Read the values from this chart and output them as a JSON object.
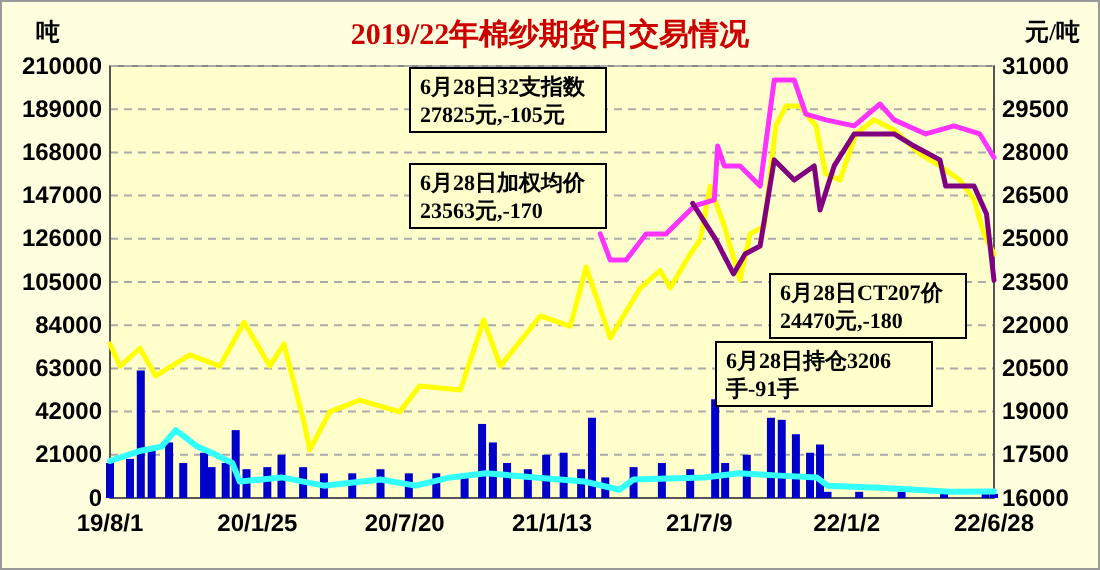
{
  "chart_data": {
    "type": "bar",
    "title": "2019/22年棉纱期货日交易情况",
    "ylabel": "吨",
    "y2label": "元/吨",
    "xlim": [
      "2019-08-01",
      "2022-06-28"
    ],
    "xticks": [
      {
        "value": "2019-08-01",
        "label": "19/8/1"
      },
      {
        "value": "2020-01-25",
        "label": "20/1/25"
      },
      {
        "value": "2020-07-20",
        "label": "20/7/20"
      },
      {
        "value": "2021-01-13",
        "label": "21/1/13"
      },
      {
        "value": "2021-07-09",
        "label": "21/7/9"
      },
      {
        "value": "2022-01-02",
        "label": "22/1/2"
      },
      {
        "value": "2022-06-28",
        "label": "22/6/28"
      }
    ],
    "ylim": [
      0,
      210000
    ],
    "yticks": [
      0,
      21000,
      42000,
      63000,
      84000,
      105000,
      126000,
      147000,
      168000,
      189000,
      210000
    ],
    "y2lim": [
      16000,
      31000
    ],
    "y2ticks": [
      16000,
      17500,
      19000,
      20500,
      22000,
      23500,
      25000,
      26500,
      28000,
      29500,
      31000
    ],
    "grid": "y",
    "series": [
      {
        "color": "#0000cc",
        "x": [
          "2019-08-01",
          "2019-08-25",
          "2019-09-07",
          "2019-09-20",
          "2019-10-11",
          "2019-10-28",
          "2019-11-22",
          "2019-12-01",
          "2019-12-18",
          "2019-12-30",
          "2020-01-12",
          "2020-02-06",
          "2020-02-23",
          "2020-03-20",
          "2020-04-14",
          "2020-05-18",
          "2020-06-21",
          "2020-07-25",
          "2020-08-27",
          "2020-09-30",
          "2020-10-21",
          "2020-11-03",
          "2020-11-20",
          "2020-12-15",
          "2021-01-06",
          "2021-01-27",
          "2021-02-17",
          "2021-03-02",
          "2021-03-18",
          "2021-04-21",
          "2021-05-25",
          "2021-06-28",
          "2021-07-28",
          "2021-08-09",
          "2021-09-04",
          "2021-10-03",
          "2021-10-16",
          "2021-11-02",
          "2021-11-19",
          "2021-12-01",
          "2021-12-10",
          "2022-01-17",
          "2022-03-09",
          "2022-04-29",
          "2022-06-18",
          "2022-06-28"
        ],
        "values": [
          17000,
          19000,
          62000,
          24000,
          27000,
          17000,
          22000,
          15000,
          17000,
          33000,
          14000,
          15000,
          21000,
          15000,
          12000,
          12000,
          14000,
          12000,
          12000,
          12000,
          36000,
          27000,
          17000,
          14000,
          21000,
          22000,
          14000,
          39000,
          10000,
          15000,
          17000,
          14000,
          48000,
          17000,
          21000,
          39000,
          38000,
          31000,
          22000,
          26000,
          3000,
          3000,
          3000,
          2000,
          2000,
          2000
        ]
      },
      {
        "type": "line",
        "color": "#33ffff",
        "x": [
          "2019-08-01",
          "2019-09-07",
          "2019-10-02",
          "2019-10-19",
          "2019-11-14",
          "2019-12-01",
          "2019-12-26",
          "2020-01-04",
          "2020-02-23",
          "2020-04-14",
          "2020-06-21",
          "2020-08-02",
          "2020-09-13",
          "2020-10-26",
          "2020-12-24",
          "2021-02-21",
          "2021-04-04",
          "2021-04-21",
          "2021-07-15",
          "2021-08-26",
          "2021-10-08",
          "2021-11-27",
          "2021-12-10",
          "2022-02-11",
          "2022-05-07",
          "2022-06-28"
        ],
        "values": [
          18000,
          23000,
          25000,
          33000,
          25000,
          22000,
          17000,
          8000,
          10000,
          6000,
          9000,
          6000,
          10000,
          12000,
          10000,
          8000,
          4000,
          9000,
          10000,
          12000,
          11000,
          10000,
          6000,
          5000,
          3000,
          3206
        ]
      },
      {
        "type": "line",
        "axis": "y2",
        "color": "#ffff00",
        "x": [
          "2019-08-01",
          "2019-08-13",
          "2019-09-06",
          "2019-09-25",
          "2019-11-05",
          "2019-12-11",
          "2020-01-09",
          "2020-02-09",
          "2020-02-26",
          "2020-03-21",
          "2020-03-28",
          "2020-04-21",
          "2020-05-27",
          "2020-07-14",
          "2020-08-07",
          "2020-09-25",
          "2020-10-23",
          "2020-11-12",
          "2020-12-30",
          "2021-02-04",
          "2021-02-23",
          "2021-03-24",
          "2021-04-29",
          "2021-05-23",
          "2021-06-04",
          "2021-06-28",
          "2021-07-10",
          "2021-07-22",
          "2021-08-08",
          "2021-08-27",
          "2021-09-08",
          "2021-09-25",
          "2021-10-09",
          "2021-10-21",
          "2021-11-07",
          "2021-11-26",
          "2021-12-08",
          "2021-12-25",
          "2022-01-13",
          "2022-02-04",
          "2022-02-28",
          "2022-03-31",
          "2022-04-24",
          "2022-05-18",
          "2022-06-04",
          "2022-06-16",
          "2022-06-28"
        ],
        "values": [
          21350,
          20580,
          21200,
          20240,
          20970,
          20580,
          22100,
          20580,
          21350,
          18640,
          17670,
          18990,
          19400,
          18990,
          19890,
          19750,
          22180,
          20580,
          22320,
          21970,
          24020,
          21560,
          23290,
          23900,
          23290,
          24470,
          24960,
          26830,
          25440,
          23570,
          25170,
          25440,
          28920,
          29610,
          29610,
          28920,
          27250,
          27040,
          28640,
          29130,
          28780,
          27950,
          27530,
          27040,
          26350,
          25170,
          24470
        ]
      },
      {
        "type": "line",
        "axis": "y2",
        "color": "#ff33ff",
        "x": [
          "2021-03-12",
          "2021-03-24",
          "2021-04-12",
          "2021-05-06",
          "2021-05-30",
          "2021-07-03",
          "2021-07-27",
          "2021-07-31",
          "2021-08-08",
          "2021-08-27",
          "2021-09-20",
          "2021-10-07",
          "2021-10-31",
          "2021-11-14",
          "2021-12-08",
          "2022-01-11",
          "2022-02-11",
          "2022-02-28",
          "2022-04-07",
          "2022-05-11",
          "2022-06-11",
          "2022-06-28"
        ],
        "values": [
          25170,
          24260,
          24260,
          25170,
          25170,
          26140,
          26350,
          28220,
          27530,
          27530,
          26830,
          30510,
          30510,
          29330,
          29130,
          28920,
          29680,
          29130,
          28640,
          28920,
          28640,
          27825
        ]
      },
      {
        "type": "line",
        "axis": "y2",
        "color": "#800080",
        "x": [
          "2021-07-01",
          "2021-07-29",
          "2021-08-19",
          "2021-09-02",
          "2021-09-20",
          "2021-10-07",
          "2021-10-31",
          "2021-11-24",
          "2021-12-01",
          "2021-12-18",
          "2022-01-11",
          "2022-02-28",
          "2022-03-24",
          "2022-04-24",
          "2022-05-01",
          "2022-06-04",
          "2022-06-19",
          "2022-06-28"
        ],
        "values": [
          26230,
          24960,
          23780,
          24470,
          24750,
          27740,
          27040,
          27530,
          26000,
          27530,
          28640,
          28640,
          28220,
          27740,
          26830,
          26830,
          25860,
          23563
        ]
      }
    ],
    "annotations": [
      "6月28日32支指数\n27825元,-105元",
      "6月28日加权均价\n23563元,-170",
      "6月28日CT207价\n24470元,-180",
      "6月28日持仓3206\n手-91手"
    ]
  }
}
